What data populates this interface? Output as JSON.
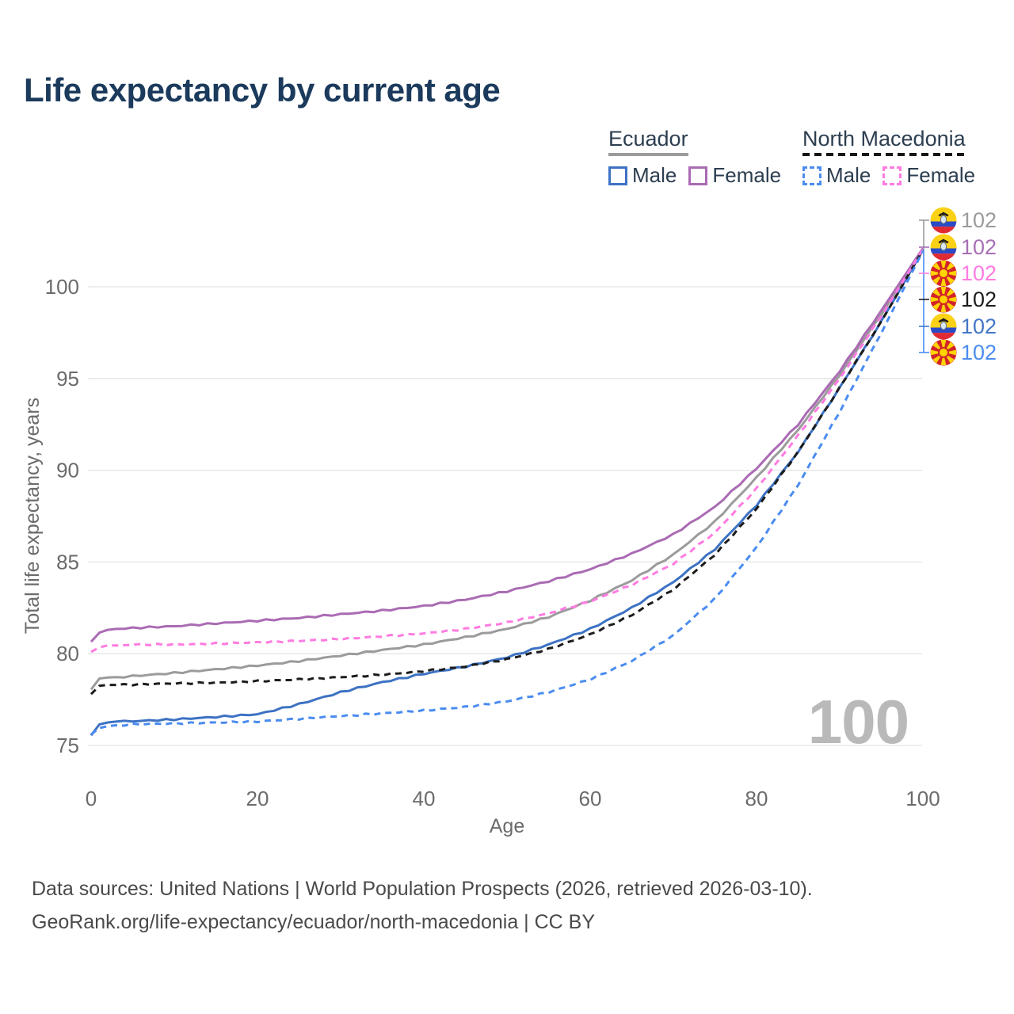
{
  "title": "Life expectancy by current age",
  "watermark": "100",
  "legend": {
    "groups": [
      {
        "name": "Ecuador",
        "line_style": "solid",
        "underline_color": "#9b9b9b",
        "items": [
          {
            "label": "Male",
            "color": "#3d72c3",
            "dashed": false
          },
          {
            "label": "Female",
            "color": "#aa6bb3",
            "dashed": false
          }
        ]
      },
      {
        "name": "North Macedonia",
        "line_style": "dashed",
        "underline_color": "#161616",
        "items": [
          {
            "label": "Male",
            "color": "#4b8cf0",
            "dashed": true
          },
          {
            "label": "Female",
            "color": "#ff7be1",
            "dashed": true
          }
        ]
      }
    ]
  },
  "chart_data": {
    "type": "line",
    "title": "Life expectancy by current age",
    "xlabel": "Age",
    "ylabel": "Total life expectancy, years",
    "xlim": [
      0,
      100
    ],
    "ylim": [
      74,
      103
    ],
    "xticks": [
      0,
      20,
      40,
      60,
      80,
      100
    ],
    "yticks": [
      75,
      80,
      85,
      90,
      95,
      100
    ],
    "grid": "horizontal-only",
    "gridline_color": "#e4e4e4",
    "x": [
      0,
      1,
      2,
      3,
      5,
      10,
      15,
      20,
      25,
      30,
      35,
      40,
      45,
      50,
      55,
      60,
      65,
      70,
      75,
      80,
      85,
      90,
      95,
      100
    ],
    "series": [
      {
        "name": "Ecuador",
        "country": "Ecuador",
        "group": "both-sexes",
        "color": "#9b9b9b",
        "line_style": "solid",
        "values": [
          78.05,
          78.65,
          78.7,
          78.72,
          78.78,
          78.95,
          79.15,
          79.35,
          79.6,
          79.9,
          80.2,
          80.5,
          80.9,
          81.35,
          82.0,
          82.9,
          84.0,
          85.4,
          87.2,
          89.6,
          92.2,
          95.2,
          98.5,
          102.05
        ]
      },
      {
        "name": "Ecuador Female",
        "country": "Ecuador",
        "group": "female",
        "color": "#aa6bb3",
        "line_style": "solid",
        "values": [
          80.65,
          81.15,
          81.3,
          81.35,
          81.4,
          81.5,
          81.65,
          81.8,
          81.95,
          82.15,
          82.35,
          82.6,
          82.95,
          83.4,
          83.95,
          84.6,
          85.45,
          86.5,
          88.0,
          90.1,
          92.5,
          95.4,
          98.7,
          102.1
        ]
      },
      {
        "name": "Ecuador Male",
        "country": "Ecuador",
        "group": "male",
        "color": "#3d72c3",
        "line_style": "solid",
        "values": [
          75.55,
          76.15,
          76.25,
          76.3,
          76.32,
          76.42,
          76.55,
          76.7,
          77.25,
          77.9,
          78.45,
          78.9,
          79.3,
          79.8,
          80.5,
          81.35,
          82.5,
          83.9,
          85.7,
          88.1,
          91.0,
          94.5,
          98.1,
          102.0
        ]
      },
      {
        "name": "North Macedonia",
        "country": "North Macedonia",
        "group": "both-sexes",
        "color": "#1c1c1c",
        "line_style": "dashed",
        "values": [
          77.8,
          78.25,
          78.3,
          78.3,
          78.32,
          78.38,
          78.42,
          78.5,
          78.6,
          78.72,
          78.85,
          79.05,
          79.3,
          79.7,
          80.25,
          81.05,
          82.1,
          83.5,
          85.4,
          87.9,
          91.0,
          94.5,
          98.1,
          102.0
        ]
      },
      {
        "name": "North Macedonia Female",
        "country": "North Macedonia",
        "group": "female",
        "color": "#ff7be1",
        "line_style": "dashed",
        "values": [
          80.1,
          80.35,
          80.45,
          80.45,
          80.5,
          80.5,
          80.55,
          80.62,
          80.7,
          80.8,
          80.95,
          81.1,
          81.35,
          81.7,
          82.2,
          82.85,
          83.75,
          84.9,
          86.6,
          89.0,
          91.9,
          95.0,
          98.4,
          102.05
        ]
      },
      {
        "name": "North Macedonia Male",
        "country": "North Macedonia",
        "group": "male",
        "color": "#4b8cf0",
        "line_style": "dashed",
        "values": [
          75.6,
          75.95,
          76.05,
          76.1,
          76.15,
          76.2,
          76.25,
          76.3,
          76.45,
          76.6,
          76.75,
          76.9,
          77.1,
          77.4,
          77.9,
          78.6,
          79.6,
          81.0,
          83.0,
          85.8,
          89.2,
          93.2,
          97.5,
          101.95
        ]
      }
    ]
  },
  "end_labels": [
    {
      "value": "102",
      "flag": "ecuador",
      "color": "#9b9b9b"
    },
    {
      "value": "102",
      "flag": "ecuador",
      "color": "#a76fb5"
    },
    {
      "value": "102",
      "flag": "north-macedonia",
      "color": "#ff7be1"
    },
    {
      "value": "102",
      "flag": "north-macedonia",
      "color": "#1c1c1c"
    },
    {
      "value": "102",
      "flag": "ecuador",
      "color": "#4377c6"
    },
    {
      "value": "102",
      "flag": "north-macedonia",
      "color": "#4b8cf0"
    }
  ],
  "icons": {
    "ecuador_flag": {
      "yellow": "#fbd116",
      "blue": "#2a4bc6",
      "red": "#e02a33",
      "crest_dark": "#1c1c1c",
      "crest_light": "#d8e6f4",
      "crest_edge": "#5a6a85"
    },
    "north_macedonia_flag": {
      "red": "#d2232a",
      "yellow": "#ffd400"
    }
  },
  "footer": {
    "line1": "Data sources: United Nations | World Population Prospects (2026, retrieved 2026-03-10).",
    "line2": "GeoRank.org/life-expectancy/ecuador/north-macedonia | CC BY"
  }
}
